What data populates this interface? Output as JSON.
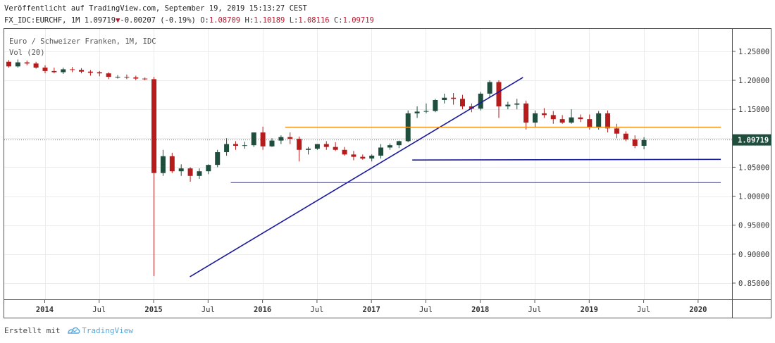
{
  "header": {
    "published": "Veröffentlicht auf TradingView.com, September 19, 2019 15:13:27 CEST",
    "symbol": "FX_IDC:EURCHF, 1M",
    "last": "1.09719",
    "change": "-0.00207 (-0.19%)",
    "o_label": "O:",
    "o_value": "1.08709",
    "h_label": "H:",
    "h_value": "1.10189",
    "l_label": "L:",
    "l_value": "1.08116",
    "c_label": "C:",
    "c_value": "1.09719"
  },
  "legend": {
    "instrument": "Euro / Schweizer Franken, 1M, IDC",
    "volume": "Vol (20)"
  },
  "footer": {
    "created_with": "Erstellt mit",
    "brand": "TradingView"
  },
  "colors": {
    "up": "#1f4e3d",
    "down": "#b71c1c",
    "trendline": "#1a1a9c",
    "support": "#2b2bd6",
    "resistance": "#f7931a",
    "price_label_bg": "#1f4e3d"
  },
  "chart_data": {
    "type": "candlestick",
    "title": "Euro / Schweizer Franken, 1M, IDC",
    "y_ticks": [
      1.25,
      1.2,
      1.15,
      1.1,
      1.05,
      1.0,
      0.95,
      0.9,
      0.85
    ],
    "y_tick_labels": [
      "1.25000",
      "1.20000",
      "1.15000",
      "1.10000",
      "1.05000",
      "1.00000",
      "0.95000",
      "0.90000",
      "0.85000"
    ],
    "ylim": [
      0.822,
      1.29
    ],
    "x_ticks": [
      {
        "label": "2014",
        "t": 0,
        "bold": true
      },
      {
        "label": "Jul",
        "t": 6,
        "bold": false
      },
      {
        "label": "2015",
        "t": 12,
        "bold": true
      },
      {
        "label": "Jul",
        "t": 18,
        "bold": false
      },
      {
        "label": "2016",
        "t": 24,
        "bold": true
      },
      {
        "label": "Jul",
        "t": 30,
        "bold": false
      },
      {
        "label": "2017",
        "t": 36,
        "bold": true
      },
      {
        "label": "Jul",
        "t": 42,
        "bold": false
      },
      {
        "label": "2018",
        "t": 48,
        "bold": true
      },
      {
        "label": "Jul",
        "t": 54,
        "bold": false
      },
      {
        "label": "2019",
        "t": 60,
        "bold": true
      },
      {
        "label": "Jul",
        "t": 66,
        "bold": false
      },
      {
        "label": "2020",
        "t": 72,
        "bold": true
      }
    ],
    "start_month": "2013-09",
    "candles": [
      [
        1.232,
        1.235,
        1.222,
        1.224
      ],
      [
        1.224,
        1.236,
        1.222,
        1.231
      ],
      [
        1.231,
        1.234,
        1.226,
        1.229
      ],
      [
        1.229,
        1.232,
        1.22,
        1.222
      ],
      [
        1.222,
        1.226,
        1.212,
        1.216
      ],
      [
        1.216,
        1.222,
        1.212,
        1.214
      ],
      [
        1.214,
        1.222,
        1.211,
        1.219
      ],
      [
        1.219,
        1.223,
        1.214,
        1.218
      ],
      [
        1.218,
        1.221,
        1.212,
        1.215
      ],
      [
        1.215,
        1.218,
        1.208,
        1.213
      ],
      [
        1.214,
        1.216,
        1.207,
        1.212
      ],
      [
        1.212,
        1.214,
        1.202,
        1.206
      ],
      [
        1.206,
        1.209,
        1.203,
        1.206
      ],
      [
        1.206,
        1.21,
        1.202,
        1.205
      ],
      [
        1.205,
        1.208,
        1.2,
        1.203
      ],
      [
        1.203,
        1.205,
        1.2,
        1.202
      ],
      [
        1.202,
        1.206,
        0.862,
        1.04
      ],
      [
        1.04,
        1.08,
        1.035,
        1.069
      ],
      [
        1.069,
        1.075,
        1.04,
        1.043
      ],
      [
        1.043,
        1.055,
        1.035,
        1.048
      ],
      [
        1.048,
        1.05,
        1.025,
        1.035
      ],
      [
        1.035,
        1.048,
        1.03,
        1.043
      ],
      [
        1.043,
        1.055,
        1.038,
        1.054
      ],
      [
        1.054,
        1.08,
        1.05,
        1.076
      ],
      [
        1.076,
        1.1,
        1.07,
        1.09
      ],
      [
        1.09,
        1.095,
        1.08,
        1.087
      ],
      [
        1.087,
        1.094,
        1.082,
        1.088
      ],
      [
        1.088,
        1.11,
        1.085,
        1.11
      ],
      [
        1.11,
        1.12,
        1.08,
        1.086
      ],
      [
        1.086,
        1.1,
        1.085,
        1.096
      ],
      [
        1.096,
        1.105,
        1.09,
        1.102
      ],
      [
        1.102,
        1.11,
        1.09,
        1.099
      ],
      [
        1.099,
        1.103,
        1.06,
        1.08
      ],
      [
        1.08,
        1.085,
        1.072,
        1.082
      ],
      [
        1.082,
        1.09,
        1.08,
        1.09
      ],
      [
        1.09,
        1.095,
        1.08,
        1.085
      ],
      [
        1.085,
        1.093,
        1.078,
        1.08
      ],
      [
        1.08,
        1.085,
        1.07,
        1.072
      ],
      [
        1.072,
        1.078,
        1.062,
        1.068
      ],
      [
        1.068,
        1.072,
        1.063,
        1.065
      ],
      [
        1.065,
        1.072,
        1.06,
        1.07
      ],
      [
        1.07,
        1.09,
        1.065,
        1.084
      ],
      [
        1.084,
        1.091,
        1.08,
        1.088
      ],
      [
        1.088,
        1.096,
        1.083,
        1.095
      ],
      [
        1.095,
        1.148,
        1.093,
        1.143
      ],
      [
        1.143,
        1.155,
        1.135,
        1.146
      ],
      [
        1.146,
        1.16,
        1.143,
        1.147
      ],
      [
        1.147,
        1.168,
        1.145,
        1.166
      ],
      [
        1.166,
        1.177,
        1.16,
        1.17
      ],
      [
        1.17,
        1.178,
        1.158,
        1.168
      ],
      [
        1.168,
        1.175,
        1.15,
        1.155
      ],
      [
        1.155,
        1.16,
        1.145,
        1.151
      ],
      [
        1.151,
        1.18,
        1.148,
        1.177
      ],
      [
        1.177,
        1.2,
        1.17,
        1.197
      ],
      [
        1.197,
        1.2,
        1.135,
        1.155
      ],
      [
        1.155,
        1.163,
        1.15,
        1.158
      ],
      [
        1.158,
        1.168,
        1.15,
        1.16
      ],
      [
        1.16,
        1.165,
        1.115,
        1.127
      ],
      [
        1.127,
        1.148,
        1.118,
        1.143
      ],
      [
        1.143,
        1.152,
        1.135,
        1.14
      ],
      [
        1.14,
        1.147,
        1.125,
        1.133
      ],
      [
        1.133,
        1.14,
        1.125,
        1.127
      ],
      [
        1.127,
        1.15,
        1.125,
        1.136
      ],
      [
        1.136,
        1.141,
        1.128,
        1.133
      ],
      [
        1.133,
        1.141,
        1.115,
        1.118
      ],
      [
        1.118,
        1.147,
        1.115,
        1.143
      ],
      [
        1.143,
        1.148,
        1.11,
        1.117
      ],
      [
        1.117,
        1.125,
        1.1,
        1.108
      ],
      [
        1.108,
        1.112,
        1.095,
        1.098
      ],
      [
        1.098,
        1.105,
        1.083,
        1.087
      ],
      [
        1.087,
        1.102,
        1.081,
        1.097
      ]
    ],
    "lines": [
      {
        "name": "uptrend",
        "t1": 16,
        "p1": 0.861,
        "t2": 52.7,
        "p2": 1.205
      },
      {
        "name": "resistance",
        "t1": 26.5,
        "p1": 1.119,
        "t2": 74.5,
        "p2": 1.119
      },
      {
        "name": "support-1",
        "t1": 40.5,
        "p1": 1.0625,
        "t2": 74.5,
        "p2": 1.0635
      },
      {
        "name": "support-2",
        "t1": 20.5,
        "p1": 1.0235,
        "t2": 74.5,
        "p2": 1.0235
      }
    ],
    "last_price": 1.09719,
    "last_price_label": "1.09719"
  }
}
